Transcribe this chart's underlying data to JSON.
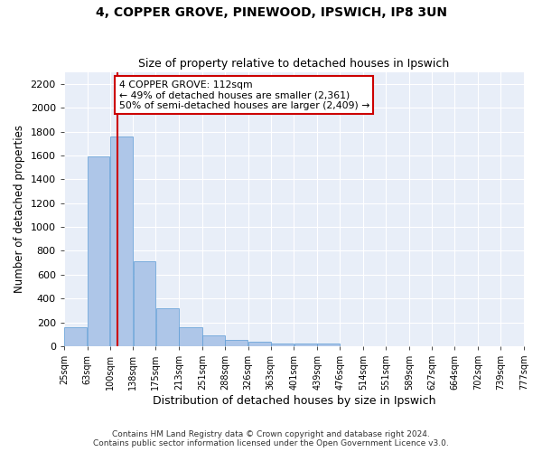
{
  "title": "4, COPPER GROVE, PINEWOOD, IPSWICH, IP8 3UN",
  "subtitle": "Size of property relative to detached houses in Ipswich",
  "xlabel": "Distribution of detached houses by size in Ipswich",
  "ylabel": "Number of detached properties",
  "bar_color": "#aec6e8",
  "bar_edge_color": "#5b9bd5",
  "background_color": "#e8eef8",
  "grid_color": "#ffffff",
  "vline_x": 112,
  "vline_color": "#cc0000",
  "annotation_text": "4 COPPER GROVE: 112sqm\n← 49% of detached houses are smaller (2,361)\n50% of semi-detached houses are larger (2,409) →",
  "annotation_box_color": "#ffffff",
  "annotation_edge_color": "#cc0000",
  "bin_edges": [
    25,
    63,
    100,
    138,
    175,
    213,
    251,
    288,
    326,
    363,
    401,
    439,
    476,
    514,
    551,
    589,
    627,
    664,
    702,
    739,
    777
  ],
  "bar_heights": [
    160,
    1590,
    1760,
    710,
    315,
    160,
    90,
    55,
    35,
    25,
    20,
    20,
    0,
    0,
    0,
    0,
    0,
    0,
    0,
    0
  ],
  "ylim": [
    0,
    2300
  ],
  "yticks": [
    0,
    200,
    400,
    600,
    800,
    1000,
    1200,
    1400,
    1600,
    1800,
    2000,
    2200
  ],
  "footnote": "Contains HM Land Registry data © Crown copyright and database right 2024.\nContains public sector information licensed under the Open Government Licence v3.0."
}
